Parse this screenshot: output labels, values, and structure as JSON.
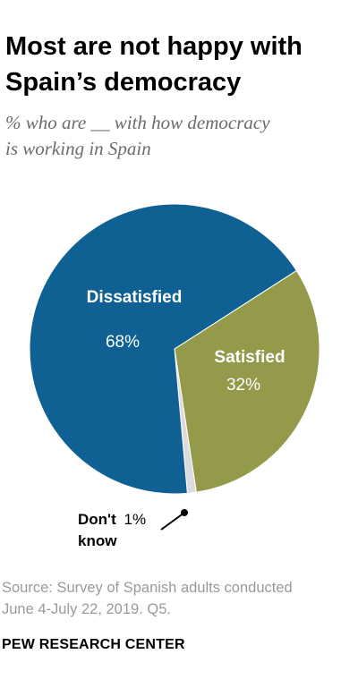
{
  "title_line1": "Most are not happy with",
  "title_line2": "Spain’s democracy",
  "subtitle_line1": "% who are __ with how democracy",
  "subtitle_line2": "is working in Spain",
  "chart_data": {
    "type": "pie",
    "title": "Most are not happy with Spain’s democracy",
    "subtitle": "% who are __ with how democracy is working in Spain",
    "slices": [
      {
        "label": "Satisfied",
        "value": 32,
        "value_label": "32%",
        "color": "#949a4a"
      },
      {
        "label_line1": "Don't",
        "label_line2": "know",
        "label": "Don't know",
        "value": 1,
        "value_label": "1%",
        "color": "#dcdcdc"
      },
      {
        "label": "Dissatisfied",
        "value": 68,
        "value_label": "68%",
        "color": "#0f6193"
      }
    ],
    "unit": "%"
  },
  "source_line1": "Source: Survey of Spanish adults conducted",
  "source_line2": "June 4-July 22, 2019. Q5.",
  "brand": "PEW RESEARCH CENTER"
}
